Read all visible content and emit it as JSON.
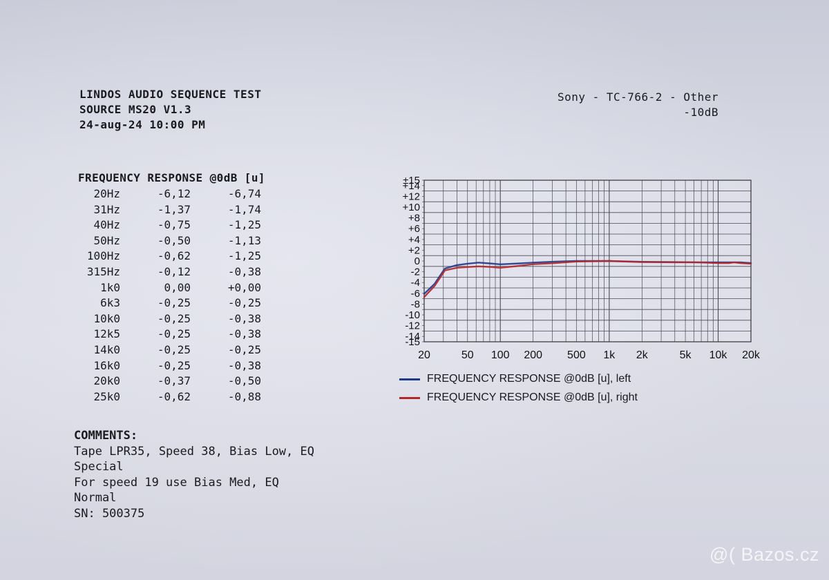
{
  "header": {
    "left_lines": [
      "LINDOS AUDIO SEQUENCE TEST",
      "SOURCE MS20 V1.3",
      "24-aug-24 10:00 PM"
    ],
    "right_lines": [
      "Sony - TC-766-2 - Other",
      "-10dB"
    ]
  },
  "frequency_table": {
    "title": "FREQUENCY RESPONSE @0dB [u]",
    "rows": [
      {
        "freq": "20Hz",
        "left": "-6,12",
        "right": "-6,74"
      },
      {
        "freq": "31Hz",
        "left": "-1,37",
        "right": "-1,74"
      },
      {
        "freq": "40Hz",
        "left": "-0,75",
        "right": "-1,25"
      },
      {
        "freq": "50Hz",
        "left": "-0,50",
        "right": "-1,13"
      },
      {
        "freq": "100Hz",
        "left": "-0,62",
        "right": "-1,25"
      },
      {
        "freq": "315Hz",
        "left": "-0,12",
        "right": "-0,38"
      },
      {
        "freq": "1k0",
        "left": "0,00",
        "right": "+0,00"
      },
      {
        "freq": "6k3",
        "left": "-0,25",
        "right": "-0,25"
      },
      {
        "freq": "10k0",
        "left": "-0,25",
        "right": "-0,38"
      },
      {
        "freq": "12k5",
        "left": "-0,25",
        "right": "-0,38"
      },
      {
        "freq": "14k0",
        "left": "-0,25",
        "right": "-0,25"
      },
      {
        "freq": "16k0",
        "left": "-0,25",
        "right": "-0,38"
      },
      {
        "freq": "20k0",
        "left": "-0,37",
        "right": "-0,50"
      },
      {
        "freq": "25k0",
        "left": "-0,62",
        "right": "-0,88"
      }
    ]
  },
  "comments": {
    "title": "COMMENTS:",
    "lines": [
      "Tape LPR35, Speed 38, Bias Low, EQ",
      "Special",
      "For speed 19 use Bias Med, EQ",
      "Normal",
      "SN: 500375"
    ]
  },
  "watermark": {
    "symbol": "@(",
    "text": "Bazos.cz"
  },
  "colors": {
    "left_series": "#1f3a8a",
    "right_series": "#b3262a",
    "grid": "#4a4a55"
  },
  "chart_data": {
    "type": "line",
    "x_scale": "log",
    "xlim": [
      20,
      20000
    ],
    "ylim": [
      -15,
      15
    ],
    "x_ticks": [
      20,
      50,
      100,
      200,
      500,
      1000,
      2000,
      5000,
      10000,
      20000
    ],
    "x_tick_labels": [
      "20",
      "50",
      "100",
      "200",
      "500",
      "1k",
      "2k",
      "5k",
      "10k",
      "20k"
    ],
    "y_ticks": [
      15,
      14,
      12,
      10,
      8,
      6,
      4,
      2,
      0,
      -2,
      -4,
      -6,
      -8,
      -10,
      -12,
      -14,
      -15
    ],
    "y_tick_labels": [
      "±15",
      "+14",
      "+12",
      "+10",
      "+8",
      "+6",
      "+4",
      "+2",
      "0",
      "-2",
      "-4",
      "-6",
      "-8",
      "-10",
      "-12",
      "-14",
      "-15"
    ],
    "grid": true,
    "legend_position": "bottom",
    "series": [
      {
        "name": "FREQUENCY RESPONSE @0dB [u], left",
        "color": "#1f3a8a",
        "points": [
          [
            20,
            -6.1
          ],
          [
            25,
            -4.2
          ],
          [
            31,
            -1.4
          ],
          [
            40,
            -0.75
          ],
          [
            50,
            -0.5
          ],
          [
            63,
            -0.3
          ],
          [
            80,
            -0.45
          ],
          [
            100,
            -0.62
          ],
          [
            150,
            -0.45
          ],
          [
            200,
            -0.3
          ],
          [
            315,
            -0.12
          ],
          [
            500,
            0.0
          ],
          [
            1000,
            0.0
          ],
          [
            2000,
            -0.15
          ],
          [
            4000,
            -0.2
          ],
          [
            6300,
            -0.25
          ],
          [
            10000,
            -0.25
          ],
          [
            12500,
            -0.25
          ],
          [
            14000,
            -0.25
          ],
          [
            16000,
            -0.25
          ],
          [
            20000,
            -0.37
          ]
        ]
      },
      {
        "name": "FREQUENCY RESPONSE @0dB [u], right",
        "color": "#b3262a",
        "points": [
          [
            20,
            -6.7
          ],
          [
            25,
            -4.6
          ],
          [
            31,
            -1.74
          ],
          [
            40,
            -1.25
          ],
          [
            50,
            -1.13
          ],
          [
            63,
            -1.0
          ],
          [
            80,
            -1.1
          ],
          [
            100,
            -1.25
          ],
          [
            150,
            -0.9
          ],
          [
            200,
            -0.6
          ],
          [
            315,
            -0.38
          ],
          [
            500,
            -0.1
          ],
          [
            1000,
            0.0
          ],
          [
            2000,
            -0.2
          ],
          [
            4000,
            -0.25
          ],
          [
            6300,
            -0.25
          ],
          [
            10000,
            -0.38
          ],
          [
            12500,
            -0.38
          ],
          [
            14000,
            -0.25
          ],
          [
            16000,
            -0.38
          ],
          [
            20000,
            -0.5
          ]
        ]
      }
    ]
  }
}
